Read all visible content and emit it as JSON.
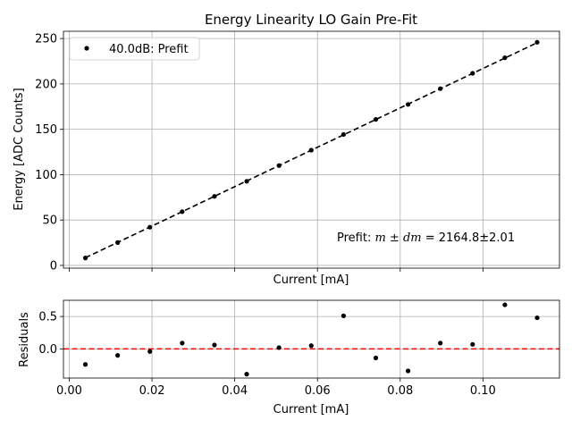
{
  "chart_data": [
    {
      "type": "line",
      "title": "Energy Linearity LO Gain Pre-Fit",
      "xlabel": "Current [mA]",
      "ylabel": "Energy [ADC Counts]",
      "xlim": [
        -0.0014,
        0.1185
      ],
      "ylim": [
        -3,
        258
      ],
      "yticks": [
        0,
        50,
        100,
        150,
        200,
        250
      ],
      "xticks": [
        0.0,
        0.02,
        0.04,
        0.06,
        0.08,
        0.1
      ],
      "show_xtick_labels": false,
      "grid": true,
      "legend": {
        "location": "upper-left",
        "entries": [
          "40.0dB: Prefit"
        ]
      },
      "annotation": {
        "prefix": "Prefit: ",
        "math": "m ± dm",
        "suffix": " = 2164.8±2.01"
      },
      "series": [
        {
          "name": "40.0dB: Prefit",
          "style": "points",
          "color": "#000000",
          "x": [
            0.0039,
            0.0117,
            0.0195,
            0.0273,
            0.0351,
            0.0429,
            0.0507,
            0.0585,
            0.0663,
            0.0741,
            0.0819,
            0.0897,
            0.0975,
            0.1053,
            0.1131
          ],
          "y": [
            8.2,
            25.2,
            42.1,
            59.2,
            76.1,
            92.7,
            110.0,
            127.0,
            144.3,
            160.9,
            177.4,
            194.8,
            211.7,
            228.8,
            245.9
          ]
        },
        {
          "style": "dashed-line",
          "color": "#000000",
          "x": [
            0.0039,
            0.1131
          ],
          "y": [
            8.44,
            245.4
          ]
        }
      ]
    },
    {
      "type": "scatter",
      "xlabel": "Current [mA]",
      "ylabel": "Residuals",
      "xlim": [
        -0.0014,
        0.1185
      ],
      "ylim": [
        -0.45,
        0.75
      ],
      "yticks": [
        0.0,
        0.5
      ],
      "ytick_labels": [
        "0.0",
        "0.5"
      ],
      "xticks": [
        0.0,
        0.02,
        0.04,
        0.06,
        0.08,
        0.1
      ],
      "xtick_labels": [
        "0.00",
        "0.02",
        "0.04",
        "0.06",
        "0.08",
        "0.10"
      ],
      "grid": true,
      "reference_line": {
        "y": 0,
        "color": "#ff0000",
        "style": "dashed"
      },
      "series": [
        {
          "style": "points",
          "color": "#000000",
          "x": [
            0.0039,
            0.0117,
            0.0195,
            0.0273,
            0.0351,
            0.0429,
            0.0507,
            0.0585,
            0.0663,
            0.0741,
            0.0819,
            0.0897,
            0.0975,
            0.1053,
            0.1131
          ],
          "y": [
            -0.24,
            -0.1,
            -0.04,
            0.09,
            0.06,
            -0.39,
            0.02,
            0.05,
            0.51,
            -0.14,
            -0.34,
            0.09,
            0.07,
            0.68,
            0.48
          ]
        }
      ]
    }
  ]
}
